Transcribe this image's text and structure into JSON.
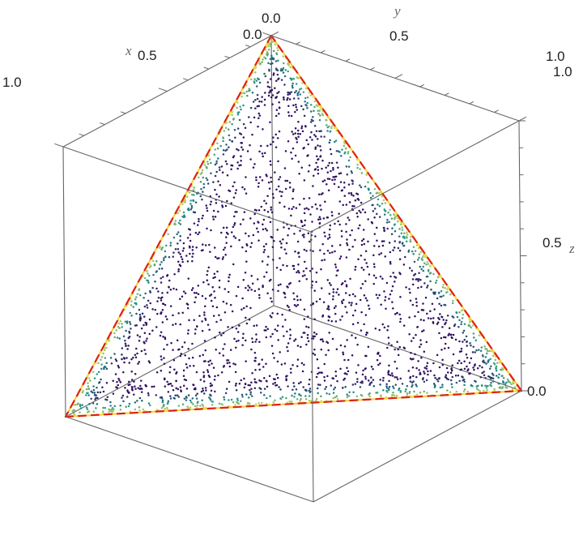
{
  "chart_data": {
    "type": "scatter",
    "dimensions": 3,
    "axes": {
      "x": {
        "label": "x",
        "range": [
          0,
          1
        ],
        "tick_labels": [
          "0.0",
          "0.5",
          "1.0"
        ],
        "ticks": [
          0,
          0.5,
          1
        ]
      },
      "y": {
        "label": "y",
        "range": [
          0,
          1
        ],
        "tick_labels": [
          "0.0",
          "0.5",
          "1.0"
        ],
        "ticks": [
          0,
          0.5,
          1
        ]
      },
      "z": {
        "label": "z",
        "range": [
          0,
          1
        ],
        "tick_labels": [
          "0.0",
          "0.5",
          "1.0"
        ],
        "ticks": [
          0,
          0.5,
          1
        ]
      }
    },
    "surface": "x + y + z = 1",
    "vertices": [
      [
        1,
        0,
        0
      ],
      [
        0,
        1,
        0
      ],
      [
        0,
        0,
        1
      ]
    ],
    "point_count": 3000,
    "color_scale": {
      "low": "#30105f",
      "mid": "#21918c",
      "high": "#f2e44a"
    },
    "boundary": {
      "colors": [
        "#f2d63a",
        "#e0201b"
      ],
      "style": "dashed"
    },
    "box": true,
    "grid": false,
    "legend": "none"
  }
}
